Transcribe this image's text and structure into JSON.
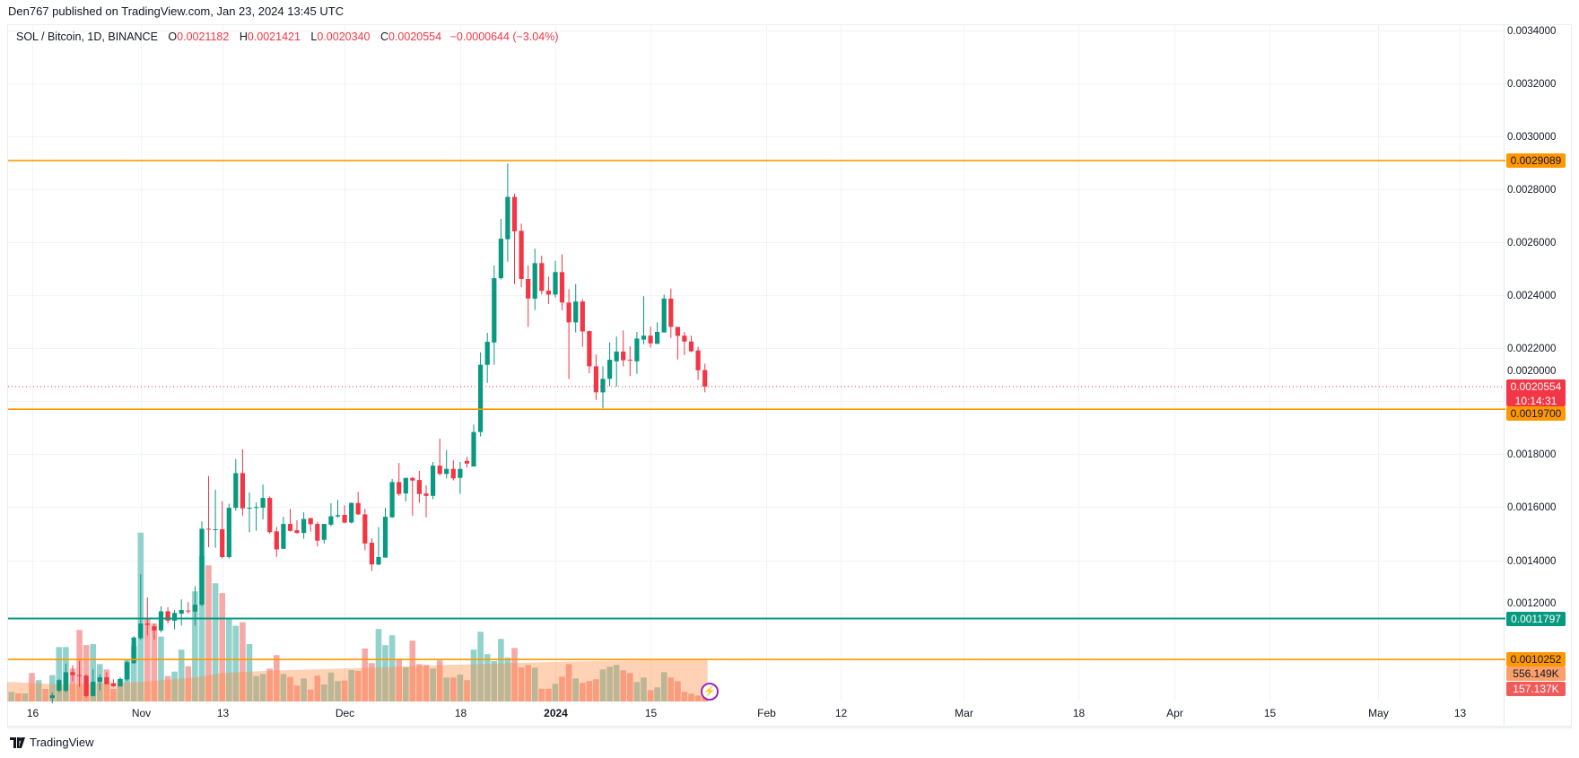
{
  "publish_line": "Den767 published on TradingView.com, Jan 23, 2024 13:45 UTC",
  "legend": {
    "symbol": "SOL / Bitcoin, 1D, BINANCE",
    "o_label": "O",
    "o_value": "0.0021182",
    "h_label": "H",
    "h_value": "0.0021421",
    "l_label": "L",
    "l_value": "0.0020340",
    "c_label": "C",
    "c_value": "0.0020554",
    "change": "−0.0000644 (−3.04%)"
  },
  "price_labels": {
    "resistance_top": "0.0029089",
    "last_price": "0.0020554",
    "countdown": "10:14:31",
    "support_mid": "0.0019700",
    "support_teal": "0.0011797",
    "support_low": "0.0010252",
    "volume_ma": "556.149K",
    "volume_last": "157.137K"
  },
  "footer": {
    "brand": "TradingView"
  },
  "colors": {
    "up": "#089981",
    "down": "#f23645",
    "orange": "#ff9800",
    "teal": "#089981",
    "vol_up": "#92d2cc",
    "vol_down": "#f7a9a7",
    "ma_fill": "#ff8a3d"
  },
  "chart_data": {
    "type": "candlestick",
    "title": "SOL / Bitcoin, 1D, BINANCE",
    "ylim": [
      0.0008665,
      0.003424
    ],
    "xlim": [
      "2023-10-12T12:00:00Z",
      "2024-05-19T12:00:00Z"
    ],
    "grid": true,
    "y_ticks": [
      "0.0034000",
      "0.0032000",
      "0.0030000",
      "0.0028000",
      "0.0026000",
      "0.0024000",
      "0.0022000",
      "0.0020000",
      "0.0018000",
      "0.0016000",
      "0.0014000",
      "0.0012000"
    ],
    "x_ticks": [
      {
        "label": "16",
        "date": "2023-10-16"
      },
      {
        "label": "Nov",
        "date": "2023-11-01"
      },
      {
        "label": "13",
        "date": "2023-11-13"
      },
      {
        "label": "Dec",
        "date": "2023-12-01"
      },
      {
        "label": "18",
        "date": "2023-12-18"
      },
      {
        "label": "2024",
        "date": "2024-01-01"
      },
      {
        "label": "15",
        "date": "2024-01-15"
      },
      {
        "label": "Feb",
        "date": "2024-02-01"
      },
      {
        "label": "12",
        "date": "2024-02-12"
      },
      {
        "label": "Mar",
        "date": "2024-03-01"
      },
      {
        "label": "18",
        "date": "2024-03-18"
      },
      {
        "label": "Apr",
        "date": "2024-04-01"
      },
      {
        "label": "15",
        "date": "2024-04-15"
      },
      {
        "label": "May",
        "date": "2024-05-01"
      },
      {
        "label": "13",
        "date": "2024-05-13"
      }
    ],
    "hlines": [
      {
        "value": 0.0029089,
        "color": "orange"
      },
      {
        "value": 0.00197,
        "color": "orange"
      },
      {
        "value": 0.0011797,
        "color": "teal"
      },
      {
        "value": 0.0010252,
        "color": "orange"
      }
    ],
    "last_price": 0.0020554,
    "ohlc_start_date": "2023-10-19",
    "ohlc": [
      [
        0.00088,
        0.0009,
        0.00086,
        0.00089
      ],
      [
        0.000907,
        0.000952,
        0.000901,
        0.000947
      ],
      [
        0.000907,
        0.001009,
        0.000901,
        0.000977
      ],
      [
        0.000977,
        0.001003,
        0.000943,
        0.000966
      ],
      [
        0.000966,
        0.00102,
        0.000921,
        0.000964
      ],
      [
        0.000964,
        0.000969,
        0.000882,
        0.000887
      ],
      [
        0.000887,
        0.000988,
        0.000885,
        0.000941
      ],
      [
        0.000941,
        0.000969,
        0.000909,
        0.000958
      ],
      [
        0.000958,
        0.000977,
        0.00093,
        0.000932
      ],
      [
        0.000935,
        0.00095,
        0.000921,
        0.000924
      ],
      [
        0.000924,
        0.000958,
        0.000922,
        0.000952
      ],
      [
        0.00095,
        0.00102,
        0.000944,
        0.001015
      ],
      [
        0.001011,
        0.001113,
        0.001009,
        0.001108
      ],
      [
        0.001105,
        0.001347,
        0.001099,
        0.001161
      ],
      [
        0.001161,
        0.001259,
        0.001116,
        0.001156
      ],
      [
        0.00115,
        0.001161,
        0.001099,
        0.001135
      ],
      [
        0.001135,
        0.001226,
        0.001127,
        0.001207
      ],
      [
        0.001207,
        0.001223,
        0.001161,
        0.001172
      ],
      [
        0.001172,
        0.001212,
        0.001139,
        0.001201
      ],
      [
        0.001198,
        0.001252,
        0.001153,
        0.001212
      ],
      [
        0.00121,
        0.001242,
        0.001198,
        0.001209
      ],
      [
        0.001206,
        0.001302,
        0.001153,
        0.001232
      ],
      [
        0.001232,
        0.001547,
        0.001226,
        0.001519
      ],
      [
        0.001519,
        0.001718,
        0.001449,
        0.001518
      ],
      [
        0.001516,
        0.001666,
        0.001447,
        0.001517
      ],
      [
        0.001517,
        0.001623,
        0.001407,
        0.001412
      ],
      [
        0.001412,
        0.001613,
        0.001406,
        0.001598
      ],
      [
        0.001598,
        0.001782,
        0.001587,
        0.001729
      ],
      [
        0.001729,
        0.001819,
        0.001568,
        0.001596
      ],
      [
        0.001596,
        0.001656,
        0.001506,
        0.001598
      ],
      [
        0.001598,
        0.001618,
        0.001511,
        0.001601
      ],
      [
        0.001598,
        0.001686,
        0.001554,
        0.001635
      ],
      [
        0.001635,
        0.001641,
        0.0015,
        0.001506
      ],
      [
        0.001509,
        0.001526,
        0.001413,
        0.001441
      ],
      [
        0.001443,
        0.001564,
        0.001443,
        0.001537
      ],
      [
        0.001537,
        0.001594,
        0.001508,
        0.001511
      ],
      [
        0.001513,
        0.001551,
        0.0015,
        0.001503
      ],
      [
        0.001503,
        0.001581,
        0.001481,
        0.001556
      ],
      [
        0.001559,
        0.00156,
        0.001508,
        0.001536
      ],
      [
        0.001537,
        0.001545,
        0.001452,
        0.001474
      ],
      [
        0.001477,
        0.001537,
        0.001463,
        0.001537
      ],
      [
        0.001534,
        0.001615,
        0.001528,
        0.001566
      ],
      [
        0.001565,
        0.001627,
        0.00156,
        0.00157
      ],
      [
        0.001571,
        0.001607,
        0.001539,
        0.001542
      ],
      [
        0.001542,
        0.001618,
        0.001539,
        0.001616
      ],
      [
        0.001616,
        0.001658,
        0.001571,
        0.001573
      ],
      [
        0.001573,
        0.001594,
        0.001438,
        0.001463
      ],
      [
        0.001466,
        0.001483,
        0.001359,
        0.001384
      ],
      [
        0.001384,
        0.001525,
        0.001381,
        0.001412
      ],
      [
        0.00141,
        0.001598,
        0.00141,
        0.001564
      ],
      [
        0.001562,
        0.001707,
        0.00156,
        0.001695
      ],
      [
        0.001695,
        0.001767,
        0.001643,
        0.00165
      ],
      [
        0.001652,
        0.001711,
        0.001622,
        0.001711
      ],
      [
        0.001711,
        0.001714,
        0.001568,
        0.001701
      ],
      [
        0.001703,
        0.001737,
        0.001616,
        0.00165
      ],
      [
        0.001652,
        0.001683,
        0.001562,
        0.001643
      ],
      [
        0.001643,
        0.001771,
        0.00163,
        0.001757
      ],
      [
        0.001757,
        0.001859,
        0.00172,
        0.001726
      ],
      [
        0.001726,
        0.001816,
        0.001709,
        0.001745
      ],
      [
        0.001745,
        0.001777,
        0.001701,
        0.001709
      ],
      [
        0.001711,
        0.001771,
        0.00165,
        0.001745
      ],
      [
        0.001775,
        0.00179,
        0.00175,
        0.001765
      ],
      [
        0.001754,
        0.001912,
        0.001754,
        0.001884
      ],
      [
        0.001884,
        0.002185,
        0.001867,
        0.002138
      ],
      [
        0.002138,
        0.002259,
        0.00207,
        0.002225
      ],
      [
        0.002222,
        0.002513,
        0.002138,
        0.002465
      ],
      [
        0.002465,
        0.002689,
        0.00246,
        0.002614
      ],
      [
        0.002612,
        0.002898,
        0.002527,
        0.002772
      ],
      [
        0.002772,
        0.002783,
        0.002443,
        0.002642
      ],
      [
        0.002644,
        0.002671,
        0.002431,
        0.002462
      ],
      [
        0.002462,
        0.002513,
        0.002281,
        0.002388
      ],
      [
        0.002388,
        0.002576,
        0.002344,
        0.002522
      ],
      [
        0.002522,
        0.00255,
        0.002403,
        0.002417
      ],
      [
        0.002418,
        0.002471,
        0.002367,
        0.002403
      ],
      [
        0.002403,
        0.00253,
        0.002392,
        0.002488
      ],
      [
        0.002488,
        0.002555,
        0.002344,
        0.002373
      ],
      [
        0.002373,
        0.002423,
        0.002084,
        0.002298
      ],
      [
        0.002298,
        0.002443,
        0.00226,
        0.002377
      ],
      [
        0.002377,
        0.002386,
        0.002206,
        0.002264
      ],
      [
        0.002265,
        0.002268,
        0.002106,
        0.002132
      ],
      [
        0.002132,
        0.002177,
        0.002005,
        0.002034
      ],
      [
        0.002034,
        0.002132,
        0.001974,
        0.002085
      ],
      [
        0.002085,
        0.002222,
        0.002057,
        0.002157
      ],
      [
        0.002151,
        0.002245,
        0.002055,
        0.002188
      ],
      [
        0.002188,
        0.002268,
        0.002132,
        0.002155
      ],
      [
        0.002157,
        0.002208,
        0.002095,
        0.002156
      ],
      [
        0.002151,
        0.002262,
        0.002104,
        0.002237
      ],
      [
        0.002233,
        0.002397,
        0.002215,
        0.002248
      ],
      [
        0.002248,
        0.002282,
        0.002203,
        0.002219
      ],
      [
        0.002217,
        0.002298,
        0.002217,
        0.002262
      ],
      [
        0.00226,
        0.002403,
        0.00226,
        0.002388
      ],
      [
        0.002388,
        0.002426,
        0.002239,
        0.002281
      ],
      [
        0.002281,
        0.002281,
        0.002158,
        0.002247
      ],
      [
        0.002248,
        0.002262,
        0.002174,
        0.002226
      ],
      [
        0.002226,
        0.002248,
        0.002185,
        0.002189
      ],
      [
        0.002192,
        0.002206,
        0.002081,
        0.002117
      ],
      [
        0.0021182,
        0.0021421,
        0.002034,
        0.0020554
      ]
    ],
    "volume_start_date": "2023-10-13",
    "volume_ylim_k": [
      0,
      8900
    ],
    "volume_k": [
      126,
      106,
      106,
      374,
      280,
      165,
      346,
      716,
      716,
      433,
      940,
      740,
      755,
      492,
      421,
      165,
      295,
      551,
      728,
      2218,
      1097,
      1023,
      853,
      334,
      393,
      681,
      464,
      1448,
      1915,
      1790,
      1554,
      1424,
      1101,
      995,
      1042,
      755,
      334,
      362,
      433,
      610,
      362,
      322,
      209,
      303,
      157,
      339,
      224,
      381,
      268,
      275,
      413,
      401,
      696,
      504,
      952,
      740,
      870,
      551,
      452,
      799,
      492,
      480,
      433,
      539,
      315,
      315,
      354,
      280,
      681,
      917,
      622,
      531,
      822,
      575,
      704,
      448,
      480,
      445,
      169,
      169,
      232,
      327,
      492,
      303,
      244,
      268,
      291,
      421,
      457,
      480,
      409,
      374,
      256,
      315,
      150,
      185,
      386,
      315,
      268,
      126,
      103,
      79,
      157
    ],
    "volume_ma_k": [
      {
        "date": "2023-10-13",
        "value": 256
      },
      {
        "date": "2023-10-20",
        "value": 224
      },
      {
        "date": "2023-11-01",
        "value": 256
      },
      {
        "date": "2023-11-09",
        "value": 315
      },
      {
        "date": "2023-11-13",
        "value": 374
      },
      {
        "date": "2023-11-20",
        "value": 405
      },
      {
        "date": "2023-12-03",
        "value": 440
      },
      {
        "date": "2023-12-16",
        "value": 480
      },
      {
        "date": "2024-01-02",
        "value": 523
      },
      {
        "date": "2024-01-23",
        "value": 556
      }
    ]
  }
}
